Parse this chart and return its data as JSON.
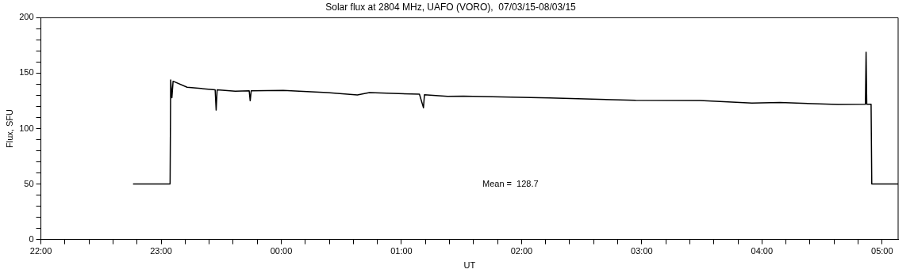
{
  "chart_data": {
    "type": "line",
    "title": "Solar flux at 2804 MHz, UAFO (VORO),  07/03/15-08/03/15",
    "xlabel": "UT",
    "ylabel": "Flux, SFU",
    "annotations": [
      "Mean =  128.7"
    ],
    "series": [
      {
        "color": "#000000",
        "x": [
          "--03-07T22:46",
          "--03-07T23:04:30",
          "--03-07T23:04:48",
          "--03-07T23:05:24",
          "--03-07T23:06",
          "--03-07T23:13",
          "--03-07T23:27",
          "--03-07T23:27:30",
          "--03-07T23:28",
          "--03-07T23:37",
          "--03-07T23:44",
          "--03-07T23:44:30",
          "--03-07T23:45",
          "--03-08T00:01",
          "--03-08T00:23",
          "--03-08T00:38",
          "--03-08T00:44",
          "--03-08T01:09",
          "--03-08T01:11",
          "--03-08T01:11:30",
          "--03-08T01:23",
          "--03-08T01:31",
          "--03-08T02:14",
          "--03-08T02:57",
          "--03-08T03:29",
          "--03-08T03:55",
          "--03-08T04:09",
          "--03-08T04:38",
          "--03-08T04:51:40",
          "--03-08T04:52",
          "--03-08T04:52:20",
          "--03-08T04:54:30",
          "--03-08T04:54:50",
          "--03-08T05:08"
        ],
        "values": [
          50,
          50,
          143.9,
          127.9,
          142.7,
          137.3,
          135,
          116.7,
          135,
          133.8,
          134,
          125.1,
          134,
          134.5,
          132.5,
          130.3,
          132.4,
          131,
          118.8,
          130.5,
          129.1,
          129.2,
          127.7,
          125.5,
          125.3,
          123,
          123.5,
          121.8,
          122,
          168.8,
          122,
          122,
          50,
          50
        ]
      }
    ],
    "xlim": [
      "--03-07T22:00",
      "--03-08T05:08"
    ],
    "xticks": [
      {
        "value": "--03-07T22:00",
        "label": "22:00"
      },
      {
        "value": "--03-07T22:12",
        "label": null
      },
      {
        "value": "--03-07T22:24",
        "label": null
      },
      {
        "value": "--03-07T22:36",
        "label": null
      },
      {
        "value": "--03-07T22:48",
        "label": null
      },
      {
        "value": "--03-07T23:00",
        "label": "23:00"
      },
      {
        "value": "--03-07T23:12",
        "label": null
      },
      {
        "value": "--03-07T23:24",
        "label": null
      },
      {
        "value": "--03-07T23:36",
        "label": null
      },
      {
        "value": "--03-07T23:48",
        "label": null
      },
      {
        "value": "--03-08T00:00",
        "label": "00:00"
      },
      {
        "value": "--03-08T00:12",
        "label": null
      },
      {
        "value": "--03-08T00:24",
        "label": null
      },
      {
        "value": "--03-08T00:36",
        "label": null
      },
      {
        "value": "--03-08T00:48",
        "label": null
      },
      {
        "value": "--03-08T01:00",
        "label": "01:00"
      },
      {
        "value": "--03-08T01:12",
        "label": null
      },
      {
        "value": "--03-08T01:24",
        "label": null
      },
      {
        "value": "--03-08T01:36",
        "label": null
      },
      {
        "value": "--03-08T01:48",
        "label": null
      },
      {
        "value": "--03-08T02:00",
        "label": "02:00"
      },
      {
        "value": "--03-08T02:12",
        "label": null
      },
      {
        "value": "--03-08T02:24",
        "label": null
      },
      {
        "value": "--03-08T02:36",
        "label": null
      },
      {
        "value": "--03-08T02:48",
        "label": null
      },
      {
        "value": "--03-08T03:00",
        "label": "03:00"
      },
      {
        "value": "--03-08T03:12",
        "label": null
      },
      {
        "value": "--03-08T03:24",
        "label": null
      },
      {
        "value": "--03-08T03:36",
        "label": null
      },
      {
        "value": "--03-08T03:48",
        "label": null
      },
      {
        "value": "--03-08T04:00",
        "label": "04:00"
      },
      {
        "value": "--03-08T04:12",
        "label": null
      },
      {
        "value": "--03-08T04:24",
        "label": null
      },
      {
        "value": "--03-08T04:36",
        "label": null
      },
      {
        "value": "--03-08T04:48",
        "label": null
      },
      {
        "value": "--03-08T05:00",
        "label": "05:00"
      }
    ],
    "ylim": [
      0,
      200
    ],
    "yticks": [
      0,
      {
        "value": 10,
        "label": null
      },
      {
        "value": 20,
        "label": null
      },
      {
        "value": 30,
        "label": null
      },
      {
        "value": 40,
        "label": null
      },
      50,
      {
        "value": 60,
        "label": null
      },
      {
        "value": 70,
        "label": null
      },
      {
        "value": 80,
        "label": null
      },
      {
        "value": 90,
        "label": null
      },
      100,
      {
        "value": 110,
        "label": null
      },
      {
        "value": 120,
        "label": null
      },
      {
        "value": 130,
        "label": null
      },
      {
        "value": 140,
        "label": null
      },
      150,
      {
        "value": 160,
        "label": null
      },
      {
        "value": 170,
        "label": null
      },
      {
        "value": 180,
        "label": null
      },
      {
        "value": 190,
        "label": null
      },
      200
    ],
    "grid": false,
    "legend": false,
    "marker": "none",
    "line_style": "solid"
  }
}
